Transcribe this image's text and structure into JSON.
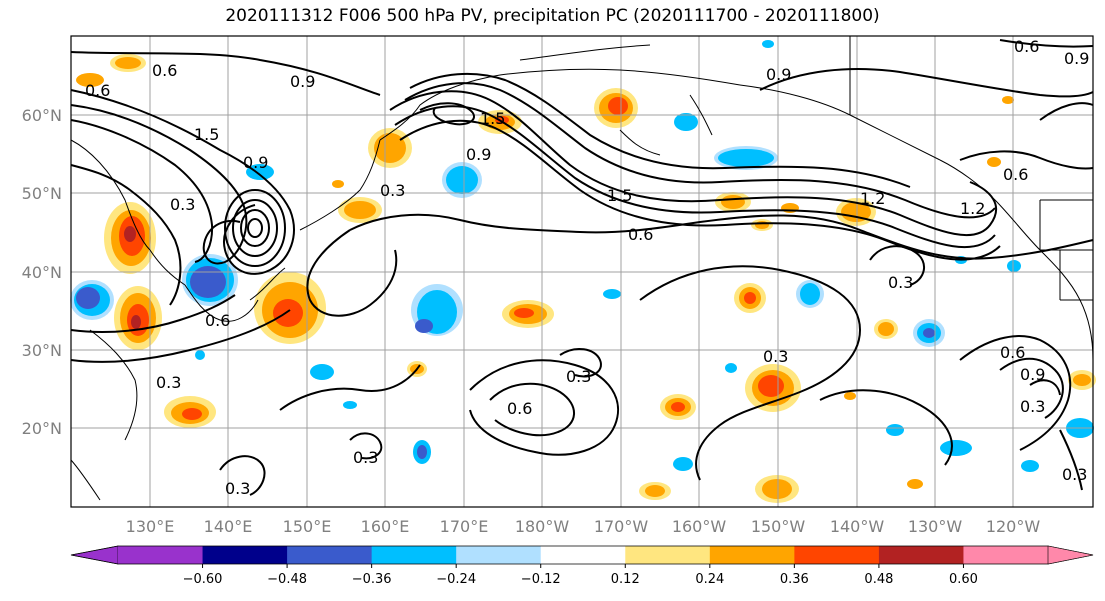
{
  "title": "2020111312 F006 500 hPa PV, precipitation PC (2020111700 - 2020111800)",
  "lon_labels": [
    "130°E",
    "140°E",
    "150°E",
    "160°E",
    "170°E",
    "180°W",
    "170°W",
    "160°W",
    "150°W",
    "140°W",
    "130°W",
    "120°W"
  ],
  "lat_labels": [
    "60°N",
    "50°N",
    "40°N",
    "30°N",
    "20°N"
  ],
  "colorbar": {
    "colors": [
      "#9932cc",
      "#00008b",
      "#3a5bcc",
      "#00bfff",
      "#b0e0ff",
      "#ffffff",
      "#ffe680",
      "#ffa500",
      "#ff4500",
      "#b22222",
      "#ff88aa"
    ],
    "tick_labels": [
      "−0.60",
      "−0.48",
      "−0.36",
      "−0.24",
      "−0.12",
      "0.12",
      "0.24",
      "0.36",
      "0.48",
      "0.60"
    ]
  },
  "contour_labels": [
    "0.6",
    "0.9",
    "0.6",
    "0.9",
    "1.5",
    "0.9",
    "0.3",
    "0.9",
    "1.5",
    "1.2",
    "0.6",
    "1.2",
    "0.6",
    "1.5",
    "0.9",
    "0.3",
    "0.3",
    "0.3",
    "0.3",
    "0.6",
    "0.3",
    "0.6",
    "0.3",
    "0.3",
    "0.6",
    "0.9",
    "0.3",
    "0.3",
    "0.6"
  ],
  "map_colors": {
    "blue_dark": "#3a5bcc",
    "blue": "#00bfff",
    "blue_light": "#b0e0ff",
    "yellow": "#ffe680",
    "orange": "#ffa500",
    "red": "#ff4500"
  }
}
